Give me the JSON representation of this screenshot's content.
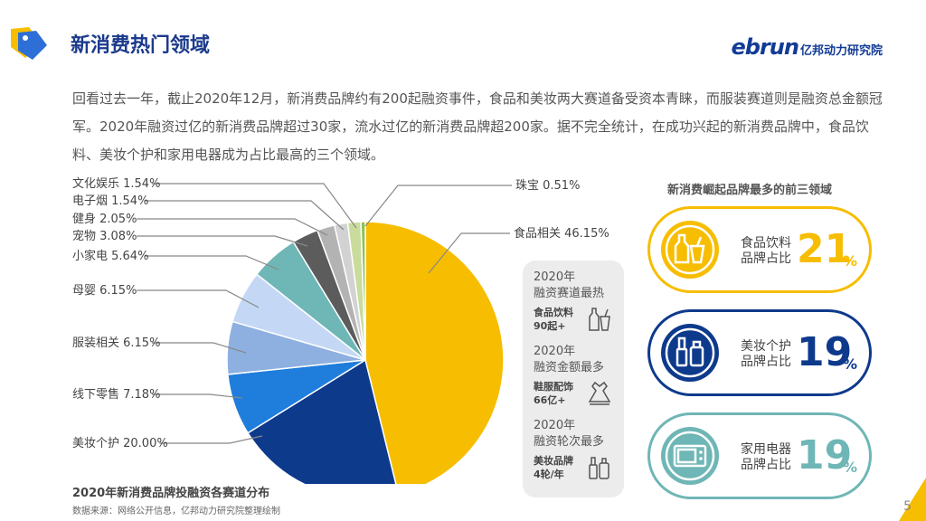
{
  "header": {
    "title": "新消费热门领域",
    "brand_logo": "ebrun",
    "brand_sub": "亿邦动力研究院"
  },
  "intro": "回看过去一年，截止2020年12月，新消费品牌约有200起融资事件，食品和美妆两大赛道备受资本青睐，而服装赛道则是融资总金额冠军。2020年融资过亿的新消费品牌超过30家，流水过亿的新消费品牌超200家。据不完全统计，在成功兴起的新消费品牌中，食品饮料、美妆个护和家用电器成为占比最高的三个领域。",
  "chart_data": {
    "type": "pie",
    "title": "2020年新消费品牌投融资各赛道分布",
    "slices": [
      {
        "label": "食品相关",
        "value": 46.15,
        "display": "食品相关 46.15%",
        "color": "#f7bd00"
      },
      {
        "label": "美妆个护",
        "value": 20.0,
        "display": "美妆个护 20.00%",
        "color": "#0e3a8c"
      },
      {
        "label": "线下零售",
        "value": 7.18,
        "display": "线下零售 7.18%",
        "color": "#1f7ddc"
      },
      {
        "label": "服装相关",
        "value": 6.15,
        "display": "服装相关 6.15%",
        "color": "#8eb0e0"
      },
      {
        "label": "母婴",
        "value": 6.15,
        "display": "母婴 6.15%",
        "color": "#c4d8f6"
      },
      {
        "label": "小家电",
        "value": 5.64,
        "display": "小家电 5.64%",
        "color": "#6fb6b6"
      },
      {
        "label": "宠物",
        "value": 3.08,
        "display": "宠物 3.08%",
        "color": "#5c5c5c"
      },
      {
        "label": "健身",
        "value": 2.05,
        "display": "健身 2.05%",
        "color": "#b3b3b3"
      },
      {
        "label": "电子烟",
        "value": 1.54,
        "display": "电子烟 1.54%",
        "color": "#d2d2d2"
      },
      {
        "label": "文化娱乐",
        "value": 1.54,
        "display": "文化娱乐 1.54%",
        "color": "#c9dc9b"
      },
      {
        "label": "珠宝",
        "value": 0.51,
        "display": "珠宝 0.51%",
        "color": "#8cc152"
      }
    ],
    "source": "数据来源：网络公开信息，亿邦动力研究院整理绘制"
  },
  "hot": {
    "groups": [
      {
        "head": [
          "2020年",
          "融资赛道最热"
        ],
        "item": [
          "食品饮料",
          "90起+"
        ],
        "icon": "bottle-cup-icon"
      },
      {
        "head": [
          "2020年",
          "融资金额最多"
        ],
        "item": [
          "鞋服配饰",
          "66亿+"
        ],
        "icon": "dress-icon"
      },
      {
        "head": [
          "2020年",
          "融资轮次最多"
        ],
        "item": [
          "美妆品牌",
          "4轮/年"
        ],
        "icon": "cosmetics-icon"
      }
    ]
  },
  "top3": {
    "title": "新消费崛起品牌最多的前三领域",
    "items": [
      {
        "label": [
          "食品饮料",
          "品牌占比"
        ],
        "num": "21",
        "pct": "%",
        "color": "#f7bd00",
        "icon": "bottle-cup-icon"
      },
      {
        "label": [
          "美妆个护",
          "品牌占比"
        ],
        "num": "19",
        "pct": "%",
        "color": "#0e3a8c",
        "icon": "cosmetics-icon"
      },
      {
        "label": [
          "家用电器",
          "品牌占比"
        ],
        "num": "19",
        "pct": "%",
        "color": "#6fb6b6",
        "icon": "microwave-icon"
      }
    ]
  },
  "page": {
    "number": "5"
  }
}
